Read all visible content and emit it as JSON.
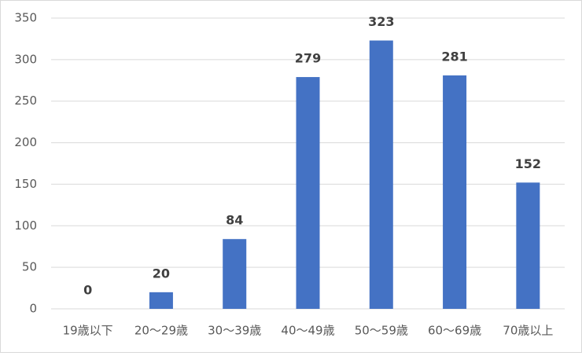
{
  "chart_data": {
    "type": "bar",
    "categories": [
      "19歳以下",
      "20～29歳",
      "30～39歳",
      "40～49歳",
      "50～59歳",
      "60～69歳",
      "70歳以上"
    ],
    "values": [
      0,
      20,
      84,
      279,
      323,
      281,
      152
    ],
    "color": "#4472c4",
    "ylim": [
      0,
      350
    ],
    "yticks": [
      0,
      50,
      100,
      150,
      200,
      250,
      300,
      350
    ],
    "grid": true,
    "data_labels": true
  }
}
